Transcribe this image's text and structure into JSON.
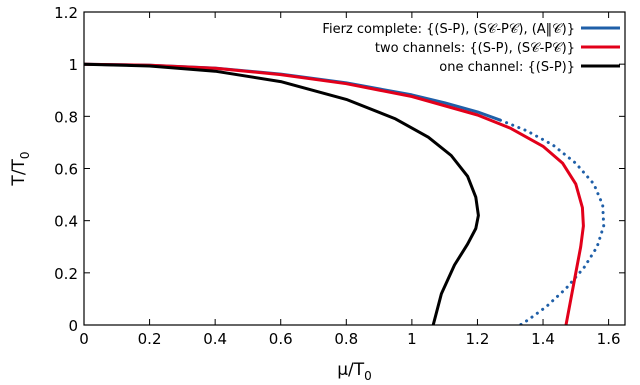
{
  "chart_data": {
    "type": "line",
    "xlabel": "μ/T",
    "xlabel_sub": "0",
    "ylabel": "T/T",
    "ylabel_sub": "0",
    "xlim": [
      0,
      1.65
    ],
    "ylim": [
      0,
      1.2
    ],
    "xticks": [
      0,
      0.2,
      0.4,
      0.6,
      0.8,
      1,
      1.2,
      1.4,
      1.6
    ],
    "xtick_labels": [
      "0",
      "0.2",
      "0.4",
      "0.6",
      "0.8",
      "1",
      "1.2",
      "1.4",
      "1.6"
    ],
    "yticks": [
      0,
      0.2,
      0.4,
      0.6,
      0.8,
      1,
      1.2
    ],
    "ytick_labels": [
      "0",
      "0.2",
      "0.4",
      "0.6",
      "0.8",
      "1",
      "1.2"
    ],
    "grid": false,
    "legend_position": "top-right",
    "series": [
      {
        "name": "Fierz complete: {(S-P), (S𝒞-P𝒞), (A‖𝒞)}",
        "color": "#1f5fa8",
        "segments": [
          {
            "style": "solid",
            "points": [
              [
                0,
                1.0
              ],
              [
                0.2,
                0.996
              ],
              [
                0.4,
                0.985
              ],
              [
                0.6,
                0.962
              ],
              [
                0.8,
                0.928
              ],
              [
                1.0,
                0.882
              ],
              [
                1.1,
                0.852
              ],
              [
                1.2,
                0.817
              ],
              [
                1.27,
                0.785
              ]
            ]
          },
          {
            "style": "dotted",
            "points": [
              [
                1.27,
                0.785
              ],
              [
                1.35,
                0.745
              ],
              [
                1.43,
                0.69
              ],
              [
                1.5,
                0.62
              ],
              [
                1.555,
                0.54
              ],
              [
                1.582,
                0.46
              ],
              [
                1.585,
                0.38
              ],
              [
                1.565,
                0.3
              ],
              [
                1.525,
                0.22
              ],
              [
                1.47,
                0.14
              ],
              [
                1.41,
                0.07
              ],
              [
                1.355,
                0.02
              ],
              [
                1.33,
                0.0
              ]
            ]
          }
        ]
      },
      {
        "name": "two channels: {(S-P), (S𝒞-P𝒞)}",
        "color": "#e2001a",
        "segments": [
          {
            "style": "solid",
            "points": [
              [
                0,
                1.0
              ],
              [
                0.2,
                0.996
              ],
              [
                0.4,
                0.984
              ],
              [
                0.6,
                0.96
              ],
              [
                0.8,
                0.925
              ],
              [
                1.0,
                0.876
              ],
              [
                1.2,
                0.805
              ],
              [
                1.3,
                0.755
              ],
              [
                1.4,
                0.685
              ],
              [
                1.46,
                0.62
              ],
              [
                1.5,
                0.54
              ],
              [
                1.52,
                0.45
              ],
              [
                1.523,
                0.38
              ],
              [
                1.515,
                0.3
              ],
              [
                1.5,
                0.2
              ],
              [
                1.485,
                0.1
              ],
              [
                1.47,
                0.0
              ]
            ]
          }
        ]
      },
      {
        "name": "one channel: {(S-P)}",
        "color": "#000000",
        "segments": [
          {
            "style": "solid",
            "points": [
              [
                0,
                1.0
              ],
              [
                0.2,
                0.993
              ],
              [
                0.4,
                0.973
              ],
              [
                0.6,
                0.933
              ],
              [
                0.8,
                0.865
              ],
              [
                0.95,
                0.79
              ],
              [
                1.05,
                0.72
              ],
              [
                1.12,
                0.65
              ],
              [
                1.17,
                0.57
              ],
              [
                1.195,
                0.49
              ],
              [
                1.203,
                0.42
              ],
              [
                1.195,
                0.37
              ],
              [
                1.17,
                0.31
              ],
              [
                1.13,
                0.23
              ],
              [
                1.09,
                0.12
              ],
              [
                1.065,
                0.0
              ]
            ]
          }
        ]
      }
    ]
  }
}
